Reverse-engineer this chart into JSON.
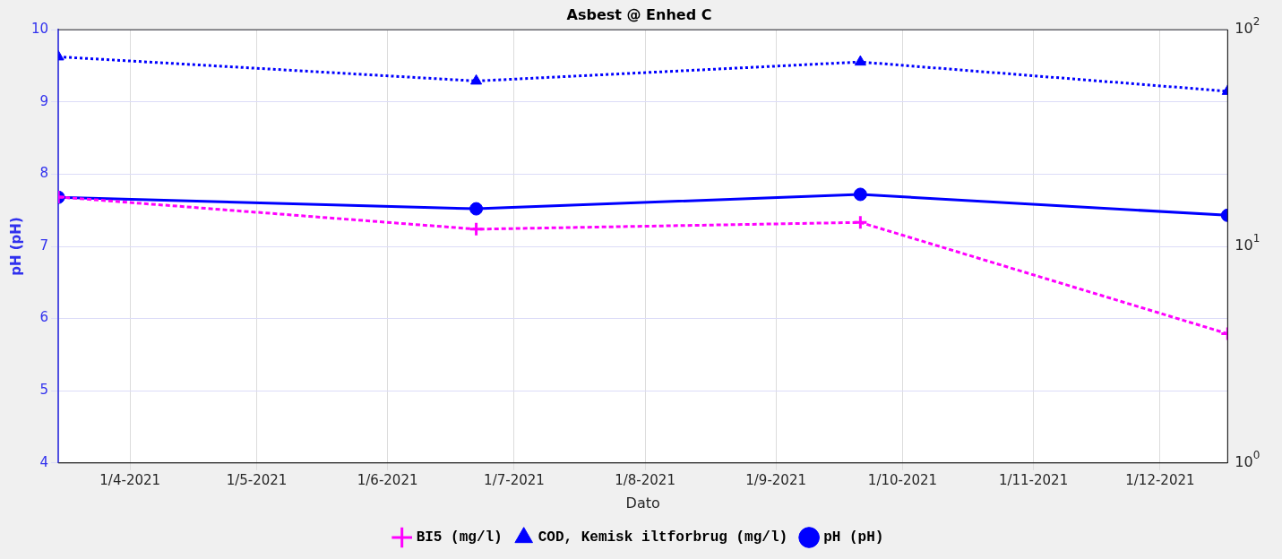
{
  "chart_data": {
    "type": "line",
    "title": "Asbest @ Enhed C",
    "xlabel": "Dato",
    "ylabel": "pH (pH)",
    "x": [
      "2021-03-15",
      "2021-06-22",
      "2021-09-21",
      "2021-12-17"
    ],
    "series": [
      {
        "name": "pH (pH)",
        "color": "#0000ff",
        "values": [
          7.68,
          7.52,
          7.72,
          7.43
        ],
        "marker": "circle",
        "line_style": "solid"
      },
      {
        "name": "COD, Kemisk iltforbrug (mg/l)",
        "color": "#0000ff",
        "values": [
          75,
          58,
          71,
          52
        ],
        "axis": "y2",
        "marker": "triangle",
        "line_style": "dotted"
      },
      {
        "name": "BI5 (mg/l)",
        "color": "#ff00ff",
        "values": [
          16.9,
          12,
          12.9,
          3.95
        ],
        "axis": "y2",
        "marker": "cross",
        "line_style": "dashed"
      }
    ],
    "xlim": [
      "2021-03-15",
      "2021-12-17"
    ],
    "xticks": [
      {
        "value": "2021-04-01",
        "label": "1/4-2021"
      },
      {
        "value": "2021-05-01",
        "label": "1/5-2021"
      },
      {
        "value": "2021-06-01",
        "label": "1/6-2021"
      },
      {
        "value": "2021-07-01",
        "label": "1/7-2021"
      },
      {
        "value": "2021-08-01",
        "label": "1/8-2021"
      },
      {
        "value": "2021-09-01",
        "label": "1/9-2021"
      },
      {
        "value": "2021-10-01",
        "label": "1/10-2021"
      },
      {
        "value": "2021-11-01",
        "label": "1/11-2021"
      },
      {
        "value": "2021-12-01",
        "label": "1/12-2021"
      }
    ],
    "ylim": [
      4,
      10
    ],
    "yticks": [
      4,
      5,
      6,
      7,
      8,
      9,
      10
    ],
    "y2lim": [
      1,
      100
    ],
    "y2ticks": [
      {
        "value": 1,
        "label": "10$^{0}$"
      },
      {
        "value": 10,
        "label": "10$^{1}$"
      },
      {
        "value": 100,
        "label": "10$^{2}$"
      }
    ],
    "log": "y2",
    "grid": true,
    "legend": "bottom"
  }
}
